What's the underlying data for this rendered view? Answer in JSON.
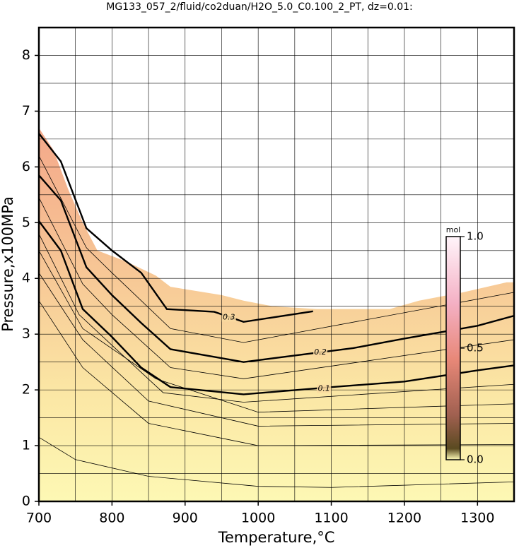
{
  "chart_data": {
    "type": "contour",
    "title": "MG133_057_2/fluid/co2duan/H2O_5.0_C0.100_2_PT, dz=0.01:",
    "xlabel": "Temperature,°C",
    "ylabel": "Pressure,x100MPa",
    "xlim": [
      700,
      1350
    ],
    "ylim": [
      0,
      8.5
    ],
    "xticks": [
      700,
      800,
      900,
      1000,
      1100,
      1200,
      1300
    ],
    "yticks": [
      0,
      1,
      2,
      3,
      4,
      5,
      6,
      7,
      8
    ],
    "xgrid": [
      750,
      800,
      850,
      900,
      950,
      1000,
      1050,
      1100,
      1150,
      1200,
      1250,
      1300
    ],
    "ygrid": [
      0.5,
      1,
      1.5,
      2,
      2.5,
      3,
      3.5,
      4,
      4.5,
      5,
      5.5,
      6,
      6.5,
      7,
      7.5,
      8
    ],
    "grid": true,
    "domain_top": {
      "x": [
        700,
        720,
        740,
        760,
        780,
        820,
        860,
        880,
        950,
        980,
        1020,
        1080,
        1180,
        1220,
        1280,
        1340,
        1350
      ],
      "y": [
        6.7,
        6.3,
        5.6,
        5.0,
        4.5,
        4.3,
        4.05,
        3.85,
        3.7,
        3.6,
        3.5,
        3.45,
        3.45,
        3.6,
        3.75,
        3.93,
        3.93
      ]
    },
    "contours": [
      {
        "level": 0.01,
        "x": [
          700,
          750,
          850,
          1000,
          1100,
          1350
        ],
        "y": [
          1.15,
          0.75,
          0.45,
          0.27,
          0.25,
          0.35
        ]
      },
      {
        "level": 0.02,
        "x": [
          700,
          760,
          850,
          1000,
          1350
        ],
        "y": [
          3.6,
          2.4,
          1.4,
          1.0,
          1.02
        ]
      },
      {
        "level": 0.04,
        "x": [
          700,
          760,
          850,
          1000,
          1350
        ],
        "y": [
          4.1,
          2.9,
          1.8,
          1.35,
          1.4
        ]
      },
      {
        "level": 0.06,
        "x": [
          700,
          760,
          860,
          1000,
          1350
        ],
        "y": [
          4.5,
          3.1,
          2.2,
          1.6,
          1.75
        ]
      },
      {
        "level": 0.08,
        "x": [
          700,
          755,
          800,
          870,
          980,
          1350
        ],
        "y": [
          4.8,
          3.35,
          2.8,
          1.95,
          1.78,
          2.1
        ]
      },
      {
        "level": 0.1,
        "label_at": [
          1090,
          2.02
        ],
        "x": [
          700,
          730,
          760,
          800,
          840,
          880,
          980,
          1100,
          1200,
          1300,
          1350
        ],
        "y": [
          5.03,
          4.5,
          3.45,
          2.95,
          2.4,
          2.05,
          1.92,
          2.05,
          2.15,
          2.35,
          2.44
        ]
      },
      {
        "level": 0.15,
        "x": [
          700,
          760,
          800,
          880,
          980,
          1350
        ],
        "y": [
          5.45,
          3.9,
          3.35,
          2.4,
          2.2,
          2.9
        ]
      },
      {
        "level": 0.2,
        "label_at": [
          1085,
          2.67
        ],
        "x": [
          700,
          730,
          765,
          800,
          840,
          880,
          980,
          1130,
          1200,
          1300,
          1350
        ],
        "y": [
          5.85,
          5.4,
          4.2,
          3.7,
          3.2,
          2.73,
          2.5,
          2.75,
          2.92,
          3.15,
          3.33
        ]
      },
      {
        "level": 0.25,
        "x": [
          700,
          765,
          800,
          880,
          980,
          1350
        ],
        "y": [
          6.2,
          4.55,
          4.1,
          3.1,
          2.85,
          3.75
        ]
      },
      {
        "level": 0.3,
        "label_at": [
          960,
          3.3
        ],
        "x": [
          700,
          730,
          765,
          800,
          840,
          875,
          940,
          980,
          1075
        ],
        "y": [
          6.6,
          6.1,
          4.9,
          4.5,
          4.1,
          3.45,
          3.4,
          3.22,
          3.41
        ]
      }
    ],
    "colorbar": {
      "label": "mol",
      "lim": [
        0,
        1
      ],
      "ticks": [
        {
          "value": 0,
          "label": "0.0"
        },
        {
          "value": 0.5,
          "label": "0.5"
        },
        {
          "value": 1,
          "label": "1.0"
        }
      ]
    }
  }
}
